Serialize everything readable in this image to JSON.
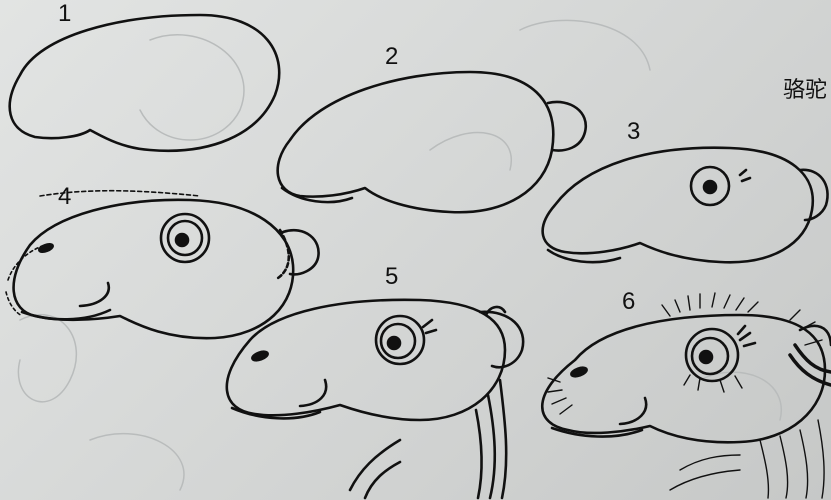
{
  "title": "骆驼",
  "steps": [
    {
      "label": "1"
    },
    {
      "label": "2"
    },
    {
      "label": "3"
    },
    {
      "label": "4"
    },
    {
      "label": "5"
    },
    {
      "label": "6"
    }
  ],
  "colors": {
    "paper": "#d9dbda",
    "ink": "#111111",
    "faint": "#b9bcbc"
  }
}
